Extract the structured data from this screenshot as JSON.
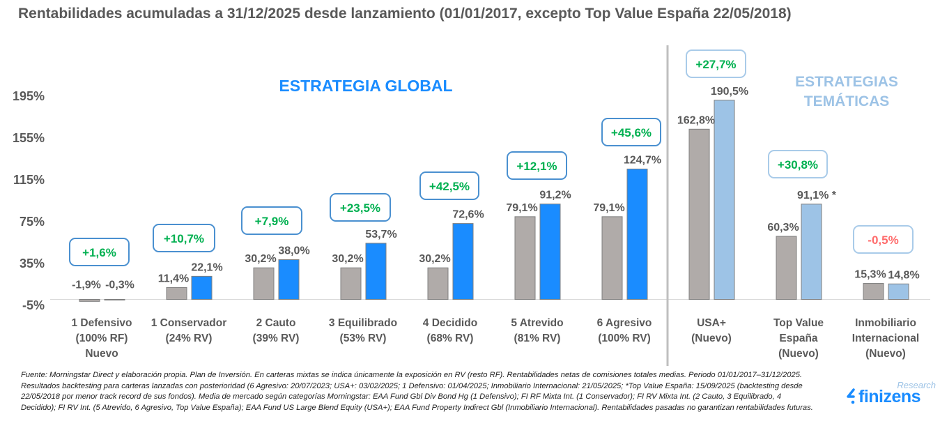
{
  "chart_data": {
    "type": "bar",
    "title": "Rentabilidades acumuladas a 31/12/2025 desde lanzamiento (01/01/2017, excepto Top Value España 22/05/2018)",
    "ylim": [
      -5,
      215
    ],
    "yticks": [
      "195%",
      "155%",
      "115%",
      "75%",
      "35%",
      "-5%"
    ],
    "ytick_values": [
      195,
      155,
      115,
      75,
      35,
      -5
    ],
    "grid": false,
    "sections": {
      "global": "ESTRATEGIA GLOBAL",
      "thematic_line1": "ESTRATEGIAS",
      "thematic_line2": "TEMÁTICAS"
    },
    "categories": [
      [
        "1 Defensivo",
        "(100% RF)",
        "Nuevo"
      ],
      [
        "1 Conservador",
        "(24% RV)"
      ],
      [
        "2 Cauto",
        "(39% RV)"
      ],
      [
        "3 Equilibrado",
        "(53% RV)"
      ],
      [
        "4 Decidido",
        "(68% RV)"
      ],
      [
        "5 Atrevido",
        "(81% RV)"
      ],
      [
        "6 Agresivo",
        "(100% RV)"
      ],
      [
        "USA+",
        "(Nuevo)"
      ],
      [
        "Top Value",
        "España",
        "(Nuevo)"
      ],
      [
        "Inmobiliario",
        "Internacional",
        "(Nuevo)"
      ]
    ],
    "series": [
      {
        "role": "market",
        "values": [
          -1.9,
          11.4,
          30.2,
          30.2,
          30.2,
          79.1,
          79.1,
          162.8,
          60.3,
          15.3
        ],
        "labels": [
          "-1,9%",
          "11,4%",
          "30,2%",
          "30,2%",
          "30,2%",
          "79,1%",
          "79,1%",
          "162,8%",
          "60,3%",
          "15,3%"
        ]
      },
      {
        "role": "finizens",
        "values": [
          -0.3,
          22.1,
          38.0,
          53.7,
          72.6,
          91.2,
          124.7,
          190.5,
          91.1,
          14.8
        ],
        "labels": [
          "-0,3%",
          "22,1%",
          "38,0%",
          "53,7%",
          "72,6%",
          "91,2%",
          "124,7%",
          "190,5%",
          "91,1% *",
          "14,8%"
        ]
      }
    ],
    "differences": [
      "+1,6%",
      "+10,7%",
      "+7,9%",
      "+23,5%",
      "+42,5%",
      "+12,1%",
      "+45,6%",
      "+27,7%",
      "+30,8%",
      "-0,5%"
    ],
    "colors": {
      "market": "#b0aba9",
      "global": "#1a8cff",
      "thematic": "#9dc3e6",
      "positive": "#00b050",
      "negative": "#ff6b6b",
      "box_global": "#4a90d0",
      "box_thematic": "#a9cbe9"
    }
  },
  "footnote": "Fuente: Morningstar Direct y elaboración propia. Plan de Inversión. En carteras mixtas se indica únicamente la exposición en RV (resto RF). Rentabilidades netas de comisiones totales medias. Periodo 01/01/2017–31/12/2025. Resultados backtesting para carteras lanzadas con posterioridad (6 Agresivo: 20/07/2023; USA+: 03/02/2025; 1 Defensivo: 01/04/2025; Inmobiliario Internacional: 21/05/2025; *Top Value España: 15/09/2025 (backtesting desde 22/05/2018 por menor track record de sus fondos). Media de mercado según categorías Morningstar: EAA Fund Gbl Div Bond Hg (1 Defensivo); FI RF Mixta Int. (1 Conservador); FI RV Mixta Int. (2 Cauto, 3 Equilibrado, 4 Decidido); FI RV Int. (5 Atrevido, 6 Agresivo, Top Value España); EAA Fund US Large Blend Equity (USA+); EAA Fund Property Indirect Gbl (Inmobiliario Internacional). Rentabilidades pasadas no garantizan rentabilidades futuras.",
  "logo": {
    "research": "Research",
    "name": "finizens"
  }
}
